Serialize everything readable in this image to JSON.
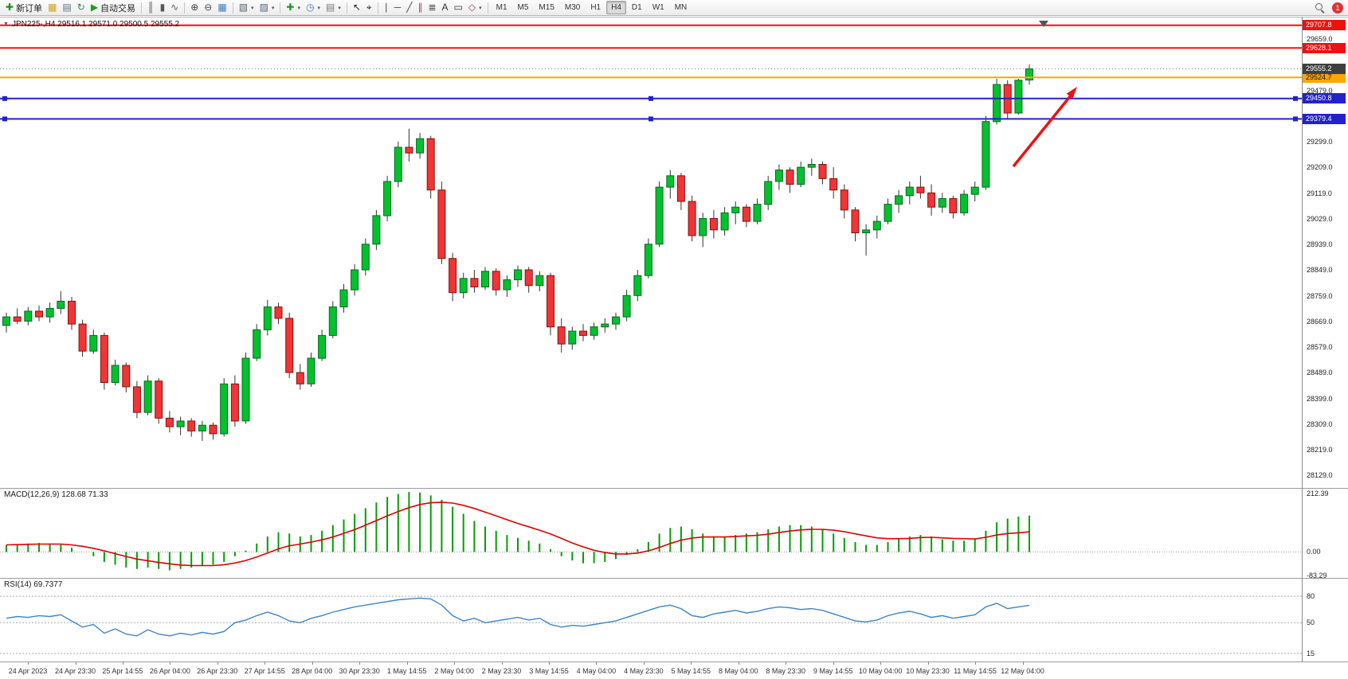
{
  "glyphs": {
    "collapse": "▼",
    "caret": "▾"
  },
  "toolbar": {
    "items": [
      {
        "type": "button",
        "name": "new-order",
        "glyph": "✚",
        "color": "#189418",
        "label": "新订单"
      },
      {
        "type": "icon",
        "name": "market",
        "glyph": "▦",
        "color": "#C9A227"
      },
      {
        "type": "icon",
        "name": "data-window",
        "glyph": "▤",
        "color": "#5B7083"
      },
      {
        "type": "icon",
        "name": "refresh",
        "glyph": "↻",
        "color": "#2E8B57"
      },
      {
        "type": "button",
        "name": "autotrading",
        "glyph": "▶",
        "color": "#18A018",
        "label": "自动交易"
      },
      {
        "type": "sep"
      },
      {
        "type": "icon",
        "name": "bar-chart",
        "glyph": "║",
        "color": "#555555"
      },
      {
        "type": "icon",
        "name": "candlestick-chart",
        "glyph": "▮",
        "color": "#555555"
      },
      {
        "type": "icon",
        "name": "line-chart",
        "glyph": "∿",
        "color": "#555555"
      },
      {
        "type": "sep"
      },
      {
        "type": "icon",
        "name": "zoom-in",
        "glyph": "⊕",
        "color": "#444444"
      },
      {
        "type": "icon",
        "name": "zoom-out",
        "glyph": "⊖",
        "color": "#444444"
      },
      {
        "type": "icon",
        "name": "tile-windows",
        "glyph": "▦",
        "color": "#3C78C0"
      },
      {
        "type": "sep"
      },
      {
        "type": "icon",
        "name": "new-chart",
        "glyph": "▧",
        "color": "#556677",
        "caret": true
      },
      {
        "type": "icon",
        "name": "profiles",
        "glyph": "▨",
        "color": "#556677",
        "caret": true
      },
      {
        "type": "sep"
      },
      {
        "type": "icon",
        "name": "indicators",
        "glyph": "✚",
        "color": "#18A018",
        "caret": true
      },
      {
        "type": "icon",
        "name": "periods",
        "glyph": "◷",
        "color": "#3C78C0",
        "caret": true
      },
      {
        "type": "icon",
        "name": "templates",
        "glyph": "▤",
        "color": "#777777",
        "caret": true
      },
      {
        "type": "sep"
      },
      {
        "type": "icon",
        "name": "cursor",
        "glyph": "↖",
        "color": "#222222"
      },
      {
        "type": "icon",
        "name": "crosshair",
        "glyph": "⌖",
        "color": "#222222"
      },
      {
        "type": "sep"
      },
      {
        "type": "icon",
        "name": "vertical-line",
        "glyph": "∣",
        "color": "#444444"
      },
      {
        "type": "icon",
        "name": "horizontal-line",
        "glyph": "─",
        "color": "#444444"
      },
      {
        "type": "icon",
        "name": "trendline",
        "glyph": "╱",
        "color": "#444444"
      },
      {
        "type": "icon",
        "name": "equidistant-channel",
        "glyph": "∥",
        "color": "#A04060"
      },
      {
        "type": "icon",
        "name": "fibonacci",
        "glyph": "≣",
        "color": "#444444"
      },
      {
        "type": "icon",
        "name": "text",
        "glyph": "A",
        "color": "#333333"
      },
      {
        "type": "icon",
        "name": "text-label",
        "glyph": "▭",
        "color": "#333333"
      },
      {
        "type": "icon",
        "name": "arrows-shapes",
        "glyph": "◇",
        "color": "#A04060",
        "caret": true
      },
      {
        "type": "sep"
      }
    ],
    "timeframes": [
      "M1",
      "M5",
      "M15",
      "M30",
      "H1",
      "H4",
      "D1",
      "W1",
      "MN"
    ],
    "active_timeframe": "H4",
    "notification_count": "1"
  },
  "colors": {
    "up": "#00C22D",
    "up_border": "#0B6623",
    "down": "#EF3535",
    "down_border": "#8B1010",
    "wick": "#333333",
    "macd_hist": "#00A000",
    "macd_signal": "#E00000",
    "rsi_line": "#3D85C8",
    "arrow": "#F01010",
    "bid_line": "#777777",
    "current_badge": "#3F3F3F",
    "shift_marker": "#555555"
  },
  "chart_data": {
    "type": "candlestick",
    "symbol": "JPN225-",
    "timeframe": "H4",
    "title": "JPN225-,H4 29516.1 29571.0 29500.5 29555.2",
    "current_price": "29555.2",
    "current_price_value": 29555.2,
    "ohlc_current": {
      "open": "29516.1",
      "high": "29571.0",
      "low": "29500.5",
      "close": "29555.2"
    },
    "price_lines": [
      {
        "price": 29707.8,
        "label": "29707.8",
        "color": "#EE1111",
        "text": "#ffffff",
        "handles": false
      },
      {
        "price": 29628.1,
        "label": "29628.1",
        "color": "#EE1111",
        "text": "#ffffff",
        "handles": false
      },
      {
        "price": 29524.7,
        "label": "29524.7",
        "color": "#FFA500",
        "text": "#111111",
        "handles": false
      },
      {
        "price": 29450.8,
        "label": "29450.8",
        "color": "#2222CC",
        "text": "#ffffff",
        "handles": true
      },
      {
        "price": 29379.4,
        "label": "29379.4",
        "color": "#2222CC",
        "text": "#ffffff",
        "handles": true
      }
    ],
    "y_axis_labels": [
      {
        "v": 29659,
        "t": "29659.0"
      },
      {
        "v": 29479,
        "t": "29479.0"
      },
      {
        "v": 29299,
        "t": "29299.0"
      },
      {
        "v": 29209,
        "t": "29209.0"
      },
      {
        "v": 29119,
        "t": "29119.0"
      },
      {
        "v": 29029,
        "t": "29029.0"
      },
      {
        "v": 28939,
        "t": "28939.0"
      },
      {
        "v": 28849,
        "t": "28849.0"
      },
      {
        "v": 28759,
        "t": "28759.0"
      },
      {
        "v": 28669,
        "t": "28669.0"
      },
      {
        "v": 28579,
        "t": "28579.0"
      },
      {
        "v": 28489,
        "t": "28489.0"
      },
      {
        "v": 28399,
        "t": "28399.0"
      },
      {
        "v": 28309,
        "t": "28309.0"
      },
      {
        "v": 28219,
        "t": "28219.0"
      },
      {
        "v": 28129,
        "t": "28129.0"
      }
    ],
    "time_labels": [
      "24 Apr 2023",
      "24 Apr 23:30",
      "25 Apr 14:55",
      "26 Apr 04:00",
      "26 Apr 23:30",
      "27 Apr 14:55",
      "28 Apr 04:00",
      "30 Apr 23:30",
      "1 May 14:55",
      "2 May 04:00",
      "2 May 23:30",
      "3 May 14:55",
      "4 May 04:00",
      "4 May 23:30",
      "5 May 14:55",
      "8 May 04:00",
      "8 May 23:30",
      "9 May 14:55",
      "10 May 04:00",
      "10 May 23:30",
      "11 May 14:55",
      "12 May 04:00"
    ],
    "candles": [
      [
        28655,
        28700,
        28630,
        28685
      ],
      [
        28685,
        28715,
        28660,
        28670
      ],
      [
        28670,
        28720,
        28655,
        28705
      ],
      [
        28705,
        28725,
        28670,
        28685
      ],
      [
        28685,
        28735,
        28665,
        28715
      ],
      [
        28715,
        28775,
        28695,
        28740
      ],
      [
        28740,
        28755,
        28640,
        28660
      ],
      [
        28660,
        28675,
        28545,
        28565
      ],
      [
        28565,
        28640,
        28555,
        28620
      ],
      [
        28620,
        28630,
        28430,
        28455
      ],
      [
        28455,
        28535,
        28445,
        28515
      ],
      [
        28515,
        28525,
        28420,
        28440
      ],
      [
        28440,
        28460,
        28330,
        28350
      ],
      [
        28350,
        28480,
        28340,
        28460
      ],
      [
        28460,
        28470,
        28310,
        28330
      ],
      [
        28330,
        28355,
        28280,
        28300
      ],
      [
        28300,
        28335,
        28270,
        28320
      ],
      [
        28320,
        28330,
        28265,
        28285
      ],
      [
        28285,
        28320,
        28250,
        28305
      ],
      [
        28305,
        28315,
        28255,
        28275
      ],
      [
        28275,
        28470,
        28265,
        28450
      ],
      [
        28450,
        28480,
        28300,
        28320
      ],
      [
        28320,
        28560,
        28310,
        28540
      ],
      [
        28540,
        28660,
        28530,
        28640
      ],
      [
        28640,
        28745,
        28620,
        28720
      ],
      [
        28720,
        28735,
        28660,
        28680
      ],
      [
        28680,
        28700,
        28470,
        28490
      ],
      [
        28490,
        28520,
        28430,
        28450
      ],
      [
        28450,
        28560,
        28440,
        28540
      ],
      [
        28540,
        28640,
        28530,
        28620
      ],
      [
        28620,
        28740,
        28610,
        28720
      ],
      [
        28720,
        28800,
        28700,
        28780
      ],
      [
        28780,
        28870,
        28760,
        28850
      ],
      [
        28850,
        28960,
        28830,
        28940
      ],
      [
        28940,
        29060,
        28920,
        29040
      ],
      [
        29040,
        29180,
        29020,
        29160
      ],
      [
        29160,
        29300,
        29140,
        29280
      ],
      [
        29280,
        29345,
        29230,
        29260
      ],
      [
        29260,
        29330,
        29240,
        29310
      ],
      [
        29310,
        29320,
        29100,
        29130
      ],
      [
        29130,
        29160,
        28870,
        28890
      ],
      [
        28890,
        28910,
        28740,
        28770
      ],
      [
        28770,
        28840,
        28750,
        28820
      ],
      [
        28820,
        28850,
        28770,
        28790
      ],
      [
        28790,
        28860,
        28780,
        28845
      ],
      [
        28845,
        28855,
        28760,
        28780
      ],
      [
        28780,
        28830,
        28755,
        28815
      ],
      [
        28815,
        28865,
        28790,
        28850
      ],
      [
        28850,
        28860,
        28770,
        28795
      ],
      [
        28795,
        28845,
        28775,
        28830
      ],
      [
        28830,
        28840,
        28620,
        28650
      ],
      [
        28650,
        28680,
        28560,
        28590
      ],
      [
        28590,
        28650,
        28570,
        28635
      ],
      [
        28635,
        28660,
        28600,
        28620
      ],
      [
        28620,
        28665,
        28605,
        28650
      ],
      [
        28650,
        28680,
        28630,
        28660
      ],
      [
        28660,
        28700,
        28640,
        28685
      ],
      [
        28685,
        28780,
        28670,
        28760
      ],
      [
        28760,
        28850,
        28740,
        28830
      ],
      [
        28830,
        28960,
        28820,
        28940
      ],
      [
        28940,
        29160,
        28930,
        29140
      ],
      [
        29140,
        29200,
        29100,
        29180
      ],
      [
        29180,
        29190,
        29060,
        29090
      ],
      [
        29090,
        29110,
        28950,
        28970
      ],
      [
        28970,
        29050,
        28930,
        29030
      ],
      [
        29030,
        29060,
        28960,
        28990
      ],
      [
        28990,
        29070,
        28970,
        29050
      ],
      [
        29050,
        29090,
        29010,
        29070
      ],
      [
        29070,
        29080,
        29000,
        29020
      ],
      [
        29020,
        29100,
        29010,
        29080
      ],
      [
        29080,
        29180,
        29060,
        29160
      ],
      [
        29160,
        29220,
        29130,
        29200
      ],
      [
        29200,
        29210,
        29120,
        29150
      ],
      [
        29150,
        29230,
        29140,
        29210
      ],
      [
        29210,
        29240,
        29180,
        29220
      ],
      [
        29220,
        29230,
        29150,
        29170
      ],
      [
        29170,
        29210,
        29100,
        29130
      ],
      [
        29130,
        29150,
        29030,
        29060
      ],
      [
        29060,
        29070,
        28950,
        28980
      ],
      [
        28980,
        29010,
        28900,
        28990
      ],
      [
        28990,
        29040,
        28960,
        29020
      ],
      [
        29020,
        29100,
        29010,
        29080
      ],
      [
        29080,
        29130,
        29050,
        29110
      ],
      [
        29110,
        29160,
        29080,
        29140
      ],
      [
        29140,
        29180,
        29100,
        29120
      ],
      [
        29120,
        29150,
        29040,
        29070
      ],
      [
        29070,
        29120,
        29050,
        29100
      ],
      [
        29100,
        29110,
        29030,
        29050
      ],
      [
        29050,
        29130,
        29040,
        29115
      ],
      [
        29115,
        29160,
        29090,
        29140
      ],
      [
        29140,
        29390,
        29130,
        29370
      ],
      [
        29370,
        29520,
        29360,
        29500
      ],
      [
        29500,
        29515,
        29380,
        29400
      ],
      [
        29400,
        29520,
        29395,
        29515
      ],
      [
        29516,
        29571,
        29500,
        29555
      ]
    ],
    "macd": {
      "display_label": "MACD(12,26,9) 128.68 71.33",
      "params": "12,26,9",
      "value": "128.68",
      "signal_value": "71.33",
      "axis_labels": [
        {
          "v": 212.39,
          "t": "212.39"
        },
        {
          "v": 0,
          "t": "0.00"
        },
        {
          "v": -83.29,
          "t": "-83.29"
        }
      ],
      "vmax": 212.39,
      "vmin": -83.29,
      "hist": [
        25,
        28,
        30,
        32,
        30,
        26,
        15,
        0,
        -15,
        -35,
        -45,
        -55,
        -60,
        -55,
        -60,
        -65,
        -60,
        -55,
        -50,
        -45,
        -35,
        -15,
        5,
        30,
        55,
        70,
        65,
        55,
        60,
        75,
        95,
        115,
        135,
        155,
        175,
        195,
        205,
        212,
        210,
        200,
        185,
        160,
        135,
        110,
        90,
        75,
        60,
        50,
        40,
        30,
        10,
        -15,
        -30,
        -40,
        -40,
        -35,
        -25,
        -10,
        10,
        35,
        65,
        85,
        90,
        80,
        65,
        55,
        55,
        60,
        65,
        70,
        80,
        90,
        95,
        95,
        90,
        80,
        65,
        50,
        35,
        25,
        25,
        35,
        45,
        55,
        60,
        55,
        45,
        40,
        40,
        45,
        75,
        105,
        118,
        125,
        128.68
      ],
      "signal": [
        25,
        26,
        27,
        28,
        28,
        28,
        25,
        20,
        13,
        4,
        -6,
        -16,
        -25,
        -31,
        -37,
        -42,
        -46,
        -48,
        -48,
        -48,
        -45,
        -39,
        -30,
        -18,
        -4,
        11,
        22,
        28,
        35,
        43,
        53,
        66,
        79,
        95,
        111,
        128,
        143,
        157,
        168,
        174,
        176,
        173,
        165,
        154,
        141,
        128,
        114,
        101,
        89,
        77,
        64,
        48,
        32,
        18,
        6,
        -2,
        -7,
        -7,
        -4,
        4,
        16,
        30,
        42,
        49,
        53,
        53,
        53,
        55,
        57,
        59,
        63,
        69,
        74,
        78,
        80,
        80,
        77,
        72,
        64,
        57,
        50,
        47,
        47,
        48,
        51,
        52,
        50,
        48,
        47,
        46,
        52,
        60,
        65,
        68,
        71.33
      ]
    },
    "rsi": {
      "display_label": "RSI(14) 69.7377",
      "period": "14",
      "value": "69.7377",
      "levels": [
        {
          "v": 80,
          "t": "80"
        },
        {
          "v": 50,
          "t": "50"
        },
        {
          "v": 15,
          "t": "15"
        }
      ],
      "values": [
        55,
        57,
        56,
        58,
        57,
        59,
        52,
        45,
        48,
        38,
        43,
        37,
        35,
        42,
        37,
        35,
        38,
        36,
        39,
        37,
        40,
        50,
        53,
        58,
        62,
        58,
        52,
        50,
        55,
        58,
        62,
        65,
        68,
        70,
        72,
        74,
        76,
        77,
        78,
        77,
        70,
        58,
        52,
        55,
        50,
        52,
        54,
        56,
        53,
        55,
        48,
        45,
        47,
        46,
        48,
        50,
        52,
        56,
        60,
        64,
        68,
        70,
        66,
        58,
        56,
        60,
        62,
        64,
        61,
        63,
        66,
        68,
        67,
        65,
        66,
        64,
        60,
        56,
        52,
        51,
        53,
        58,
        61,
        63,
        60,
        56,
        58,
        55,
        57,
        59,
        68,
        72,
        66,
        68,
        69.74
      ]
    }
  }
}
